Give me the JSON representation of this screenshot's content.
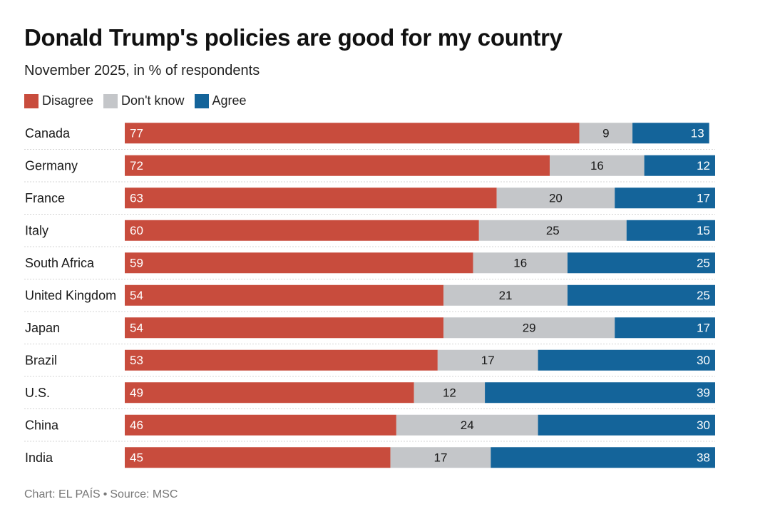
{
  "title": "Donald Trump's policies are good for my country",
  "subtitle": "November 2025, in % of respondents",
  "legend": [
    {
      "name": "disagree",
      "label": "Disagree",
      "color": "#c84c3d"
    },
    {
      "name": "dont-know",
      "label": "Don't know",
      "color": "#c4c6c9"
    },
    {
      "name": "agree",
      "label": "Agree",
      "color": "#14649a"
    }
  ],
  "footer": {
    "chart_credit": "Chart: EL PAÍS",
    "separator": "•",
    "source": "Source: MSC"
  },
  "chart_data": {
    "type": "bar",
    "orientation": "horizontal",
    "stacked": true,
    "title": "Donald Trump's policies are good for my country",
    "subtitle": "November 2025, in % of respondents",
    "xlabel": "",
    "ylabel": "",
    "xlim": [
      0,
      100
    ],
    "grid": false,
    "legend_position": "top-left",
    "categories": [
      "Canada",
      "Germany",
      "France",
      "Italy",
      "South Africa",
      "United Kingdom",
      "Japan",
      "Brazil",
      "U.S.",
      "China",
      "India"
    ],
    "series": [
      {
        "name": "Disagree",
        "color": "#c84c3d",
        "label_color": "#ffffff",
        "label_align": "start",
        "values": [
          77,
          72,
          63,
          60,
          59,
          54,
          54,
          53,
          49,
          46,
          45
        ]
      },
      {
        "name": "Don't know",
        "color": "#c4c6c9",
        "label_color": "#1a1a1a",
        "label_align": "center",
        "values": [
          9,
          16,
          20,
          25,
          16,
          21,
          29,
          17,
          12,
          24,
          17
        ]
      },
      {
        "name": "Agree",
        "color": "#14649a",
        "label_color": "#ffffff",
        "label_align": "end",
        "values": [
          13,
          12,
          17,
          15,
          25,
          25,
          17,
          30,
          39,
          30,
          38
        ]
      }
    ]
  }
}
